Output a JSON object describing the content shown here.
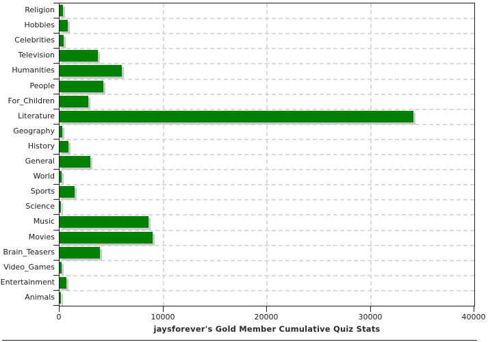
{
  "chart_data": {
    "type": "bar",
    "orientation": "horizontal",
    "title": "jaysforever's Gold Member Cumulative Quiz Stats",
    "categories": [
      "Religion",
      "Hobbies",
      "Celebrities",
      "Television",
      "Humanities",
      "People",
      "For_Children",
      "Literature",
      "Geography",
      "History",
      "General",
      "World",
      "Sports",
      "Science",
      "Music",
      "Movies",
      "Brain_Teasers",
      "Video_Games",
      "Entertainment",
      "Animals"
    ],
    "values": [
      300,
      800,
      400,
      3700,
      6000,
      4250,
      2800,
      34100,
      280,
      880,
      3000,
      200,
      1450,
      150,
      8600,
      9000,
      3900,
      200,
      660,
      130
    ],
    "xlim": [
      0,
      40000
    ],
    "x_ticks": [
      0,
      10000,
      20000,
      30000,
      40000
    ],
    "x_tick_labels": [
      "0",
      "10000",
      "20000",
      "30000",
      "40000"
    ],
    "xlabel": "",
    "ylabel": "",
    "grid": "dashed",
    "legend_position": "none",
    "colors": {
      "bar": "#008000",
      "bar_shadow": "#c9c9c9",
      "grid": "#d9d9d9",
      "axis": "#1a1a1a",
      "background": "#ffffff"
    }
  }
}
